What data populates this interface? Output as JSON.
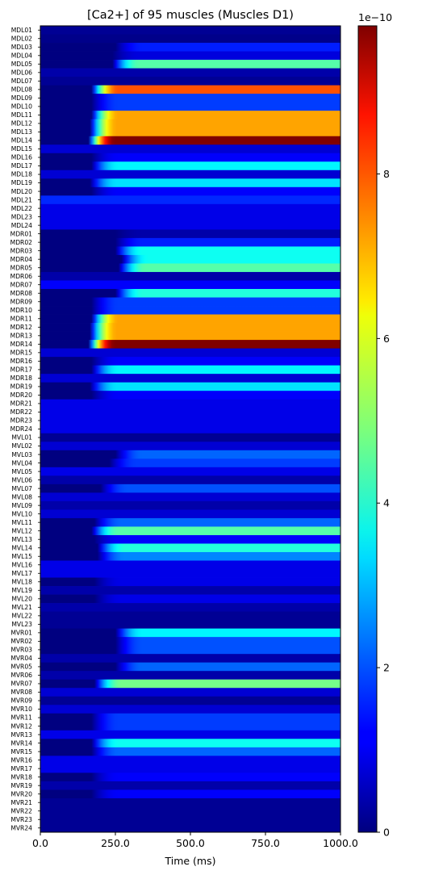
{
  "chart_data": {
    "type": "heatmap",
    "title": "[Ca2+] of 95 muscles (Muscles D1)",
    "xlabel": "Time (ms)",
    "xlim": [
      0,
      1000
    ],
    "x_ticks": [
      "0.0",
      "250.0",
      "500.0",
      "750.0",
      "1000.0"
    ],
    "colorbar": {
      "min": 0,
      "max": 9.8,
      "ticks": [
        "0",
        "2",
        "4",
        "6",
        "8"
      ],
      "exponent": "1e−10",
      "colormap": "jet"
    },
    "rows": [
      {
        "label": "MDL01",
        "onset": 0,
        "end": 0.2
      },
      {
        "label": "MDL02",
        "onset": 0,
        "end": 0.1
      },
      {
        "label": "MDL03",
        "onset": 250,
        "end": 1.5
      },
      {
        "label": "MDL04",
        "onset": 240,
        "end": 0.9
      },
      {
        "label": "MDL05",
        "onset": 240,
        "end": 4.5
      },
      {
        "label": "MDL06",
        "onset": 0,
        "end": 0.4
      },
      {
        "label": "MDL07",
        "onset": 0,
        "end": 0.2
      },
      {
        "label": "MDL08",
        "onset": 170,
        "end": 7.8
      },
      {
        "label": "MDL09",
        "onset": 170,
        "end": 1.8
      },
      {
        "label": "MDL10",
        "onset": 170,
        "end": 1.8
      },
      {
        "label": "MDL11",
        "onset": 170,
        "end": 7.0
      },
      {
        "label": "MDL12",
        "onset": 165,
        "end": 7.0
      },
      {
        "label": "MDL13",
        "onset": 165,
        "end": 7.0
      },
      {
        "label": "MDL14",
        "onset": 160,
        "end": 9.8
      },
      {
        "label": "MDL15",
        "onset": 0,
        "end": 0.8
      },
      {
        "label": "MDL16",
        "onset": 170,
        "end": 1.2
      },
      {
        "label": "MDL17",
        "onset": 170,
        "end": 3.6
      },
      {
        "label": "MDL18",
        "onset": 0,
        "end": 0.8
      },
      {
        "label": "MDL19",
        "onset": 165,
        "end": 3.4
      },
      {
        "label": "MDL20",
        "onset": 170,
        "end": 1.2
      },
      {
        "label": "MDL21",
        "onset": 0,
        "end": 1.6
      },
      {
        "label": "MDL22",
        "onset": 0,
        "end": 1.0
      },
      {
        "label": "MDL23",
        "onset": 0,
        "end": 1.0
      },
      {
        "label": "MDL24",
        "onset": 0,
        "end": 1.0
      },
      {
        "label": "MDR01",
        "onset": 250,
        "end": 0.4
      },
      {
        "label": "MDR02",
        "onset": 250,
        "end": 1.5
      },
      {
        "label": "MDR03",
        "onset": 250,
        "end": 3.8
      },
      {
        "label": "MDR04",
        "onset": 270,
        "end": 3.8
      },
      {
        "label": "MDR05",
        "onset": 260,
        "end": 4.5
      },
      {
        "label": "MDR06",
        "onset": 0,
        "end": 0.4
      },
      {
        "label": "MDR07",
        "onset": 0,
        "end": 1.2
      },
      {
        "label": "MDR08",
        "onset": 250,
        "end": 4.0
      },
      {
        "label": "MDR09",
        "onset": 170,
        "end": 1.8
      },
      {
        "label": "MDR10",
        "onset": 170,
        "end": 1.8
      },
      {
        "label": "MDR11",
        "onset": 170,
        "end": 7.0
      },
      {
        "label": "MDR12",
        "onset": 165,
        "end": 7.0
      },
      {
        "label": "MDR13",
        "onset": 165,
        "end": 7.0
      },
      {
        "label": "MDR14",
        "onset": 160,
        "end": 9.8
      },
      {
        "label": "MDR15",
        "onset": 0,
        "end": 0.8
      },
      {
        "label": "MDR16",
        "onset": 170,
        "end": 1.2
      },
      {
        "label": "MDR17",
        "onset": 170,
        "end": 3.6
      },
      {
        "label": "MDR18",
        "onset": 0,
        "end": 0.8
      },
      {
        "label": "MDR19",
        "onset": 165,
        "end": 3.4
      },
      {
        "label": "MDR20",
        "onset": 170,
        "end": 1.2
      },
      {
        "label": "MDR21",
        "onset": 0,
        "end": 1.0
      },
      {
        "label": "MDR22",
        "onset": 0,
        "end": 1.0
      },
      {
        "label": "MDR23",
        "onset": 0,
        "end": 1.0
      },
      {
        "label": "MDR24",
        "onset": 0,
        "end": 1.0
      },
      {
        "label": "MVL01",
        "onset": 0,
        "end": 0.2
      },
      {
        "label": "MVL02",
        "onset": 0,
        "end": 0.8
      },
      {
        "label": "MVL03",
        "onset": 250,
        "end": 2.2
      },
      {
        "label": "MVL04",
        "onset": 230,
        "end": 1.8
      },
      {
        "label": "MVL05",
        "onset": 0,
        "end": 1.0
      },
      {
        "label": "MVL06",
        "onset": 0,
        "end": 0.4
      },
      {
        "label": "MVL07",
        "onset": 200,
        "end": 2.0
      },
      {
        "label": "MVL08",
        "onset": 0,
        "end": 0.8
      },
      {
        "label": "MVL09",
        "onset": 0,
        "end": 0.4
      },
      {
        "label": "MVL10",
        "onset": 0,
        "end": 0.8
      },
      {
        "label": "MVL11",
        "onset": 180,
        "end": 2.2
      },
      {
        "label": "MVL12",
        "onset": 170,
        "end": 4.5
      },
      {
        "label": "MVL13",
        "onset": 180,
        "end": 1.2
      },
      {
        "label": "MVL14",
        "onset": 190,
        "end": 4.0
      },
      {
        "label": "MVL15",
        "onset": 190,
        "end": 2.5
      },
      {
        "label": "MVL16",
        "onset": 0,
        "end": 1.0
      },
      {
        "label": "MVL17",
        "onset": 0,
        "end": 1.0
      },
      {
        "label": "MVL18",
        "onset": 180,
        "end": 1.0
      },
      {
        "label": "MVL19",
        "onset": 0,
        "end": 0.4
      },
      {
        "label": "MVL20",
        "onset": 180,
        "end": 1.0
      },
      {
        "label": "MVL21",
        "onset": 0,
        "end": 0.4
      },
      {
        "label": "MVL22",
        "onset": 0,
        "end": 0.2
      },
      {
        "label": "MVL23",
        "onset": 0,
        "end": 0.2
      },
      {
        "label": "MVR01",
        "onset": 250,
        "end": 3.6
      },
      {
        "label": "MVR02",
        "onset": 250,
        "end": 2.0
      },
      {
        "label": "MVR03",
        "onset": 250,
        "end": 2.0
      },
      {
        "label": "MVR04",
        "onset": 0,
        "end": 0.4
      },
      {
        "label": "MVR05",
        "onset": 250,
        "end": 2.2
      },
      {
        "label": "MVR06",
        "onset": 0,
        "end": 0.4
      },
      {
        "label": "MVR07",
        "onset": 180,
        "end": 4.8
      },
      {
        "label": "MVR08",
        "onset": 0,
        "end": 0.8
      },
      {
        "label": "MVR09",
        "onset": 0,
        "end": 0.2
      },
      {
        "label": "MVR10",
        "onset": 0,
        "end": 0.8
      },
      {
        "label": "MVR11",
        "onset": 170,
        "end": 1.8
      },
      {
        "label": "MVR12",
        "onset": 170,
        "end": 1.8
      },
      {
        "label": "MVR13",
        "onset": 0,
        "end": 1.0
      },
      {
        "label": "MVR14",
        "onset": 170,
        "end": 3.8
      },
      {
        "label": "MVR15",
        "onset": 170,
        "end": 2.2
      },
      {
        "label": "MVR16",
        "onset": 0,
        "end": 1.0
      },
      {
        "label": "MVR17",
        "onset": 0,
        "end": 1.0
      },
      {
        "label": "MVR18",
        "onset": 170,
        "end": 1.2
      },
      {
        "label": "MVR19",
        "onset": 0,
        "end": 0.4
      },
      {
        "label": "MVR20",
        "onset": 170,
        "end": 1.2
      },
      {
        "label": "MVR21",
        "onset": 0,
        "end": 0.2
      },
      {
        "label": "MVR22",
        "onset": 0,
        "end": 0.2
      },
      {
        "label": "MVR23",
        "onset": 0,
        "end": 0.2
      },
      {
        "label": "MVR24",
        "onset": 0,
        "end": 0.2
      }
    ]
  }
}
